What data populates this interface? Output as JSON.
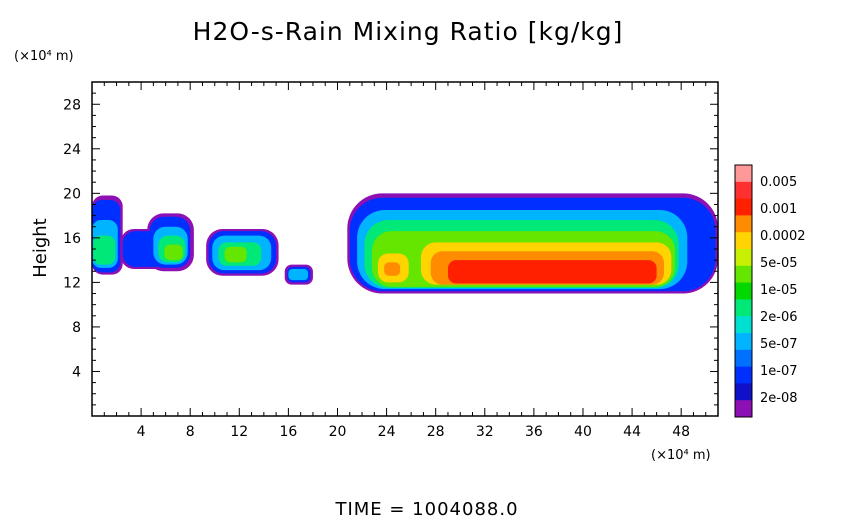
{
  "chart_data": {
    "type": "heatmap",
    "title": "H2O-s-Rain Mixing Ratio [kg/kg]",
    "ylabel": "Height",
    "xlabel": "",
    "x_unit": "(×10⁴ m)",
    "y_unit": "(×10⁴ m)",
    "footer": "TIME  =  1004088.0",
    "xlim": [
      0,
      51
    ],
    "ylim": [
      0,
      30
    ],
    "xticks": [
      "4",
      "8",
      "12",
      "16",
      "20",
      "24",
      "28",
      "32",
      "36",
      "40",
      "44",
      "48"
    ],
    "yticks": [
      "4",
      "8",
      "12",
      "16",
      "20",
      "24",
      "28"
    ],
    "colorbar": {
      "labels": [
        "0.005",
        "0.001",
        "0.0002",
        "5e-05",
        "1e-05",
        "2e-06",
        "5e-07",
        "1e-07",
        "2e-08"
      ],
      "colors": [
        "#ff9999",
        "#ff3030",
        "#ff2000",
        "#ff8c00",
        "#ffd400",
        "#c8f000",
        "#64e600",
        "#00d800",
        "#00e878",
        "#00e0d0",
        "#00b4ff",
        "#0070ff",
        "#0030ff",
        "#1010c8",
        "#8c10b4"
      ]
    },
    "layers": [
      {
        "color": "#8c10b4",
        "regions": [
          {
            "x": [
              0,
              2.5
            ],
            "y": [
              12.7,
              19.8
            ]
          },
          {
            "x": [
              2.3,
              6.5
            ],
            "y": [
              13.2,
              16.8
            ]
          },
          {
            "x": [
              4.5,
              8.3
            ],
            "y": [
              13.0,
              18.2
            ]
          },
          {
            "x": [
              9.3,
              15.2
            ],
            "y": [
              12.6,
              16.8
            ]
          },
          {
            "x": [
              15.7,
              18.0
            ],
            "y": [
              11.8,
              13.6
            ]
          },
          {
            "x": [
              20.8,
              51
            ],
            "y": [
              11.0,
              20.0
            ]
          }
        ]
      },
      {
        "color": "#0030ff",
        "regions": [
          {
            "x": [
              0,
              2.3
            ],
            "y": [
              12.9,
              19.4
            ]
          },
          {
            "x": [
              2.5,
              6.3
            ],
            "y": [
              13.4,
              16.6
            ]
          },
          {
            "x": [
              4.7,
              8.0
            ],
            "y": [
              13.3,
              17.9
            ]
          },
          {
            "x": [
              9.5,
              15.0
            ],
            "y": [
              12.8,
              16.6
            ]
          },
          {
            "x": [
              15.9,
              17.8
            ],
            "y": [
              12.0,
              13.4
            ]
          },
          {
            "x": [
              21.0,
              50.8
            ],
            "y": [
              11.2,
              19.6
            ]
          }
        ]
      },
      {
        "color": "#00b4ff",
        "regions": [
          {
            "x": [
              0,
              2.1
            ],
            "y": [
              13.3,
              17.6
            ]
          },
          {
            "x": [
              5.0,
              7.8
            ],
            "y": [
              13.6,
              17.0
            ]
          },
          {
            "x": [
              9.8,
              14.6
            ],
            "y": [
              13.1,
              16.2
            ]
          },
          {
            "x": [
              16.0,
              17.6
            ],
            "y": [
              12.2,
              13.2
            ]
          },
          {
            "x": [
              21.6,
              48.5
            ],
            "y": [
              11.4,
              18.5
            ]
          }
        ]
      },
      {
        "color": "#00e878",
        "regions": [
          {
            "x": [
              0.1,
              1.9
            ],
            "y": [
              13.6,
              16.2
            ]
          },
          {
            "x": [
              5.4,
              7.6
            ],
            "y": [
              13.8,
              16.2
            ]
          },
          {
            "x": [
              10.3,
              13.8
            ],
            "y": [
              13.5,
              15.6
            ]
          },
          {
            "x": [
              22.2,
              47.8
            ],
            "y": [
              11.5,
              17.6
            ]
          }
        ]
      },
      {
        "color": "#64e600",
        "regions": [
          {
            "x": [
              5.9,
              7.4
            ],
            "y": [
              14.0,
              15.4
            ]
          },
          {
            "x": [
              10.8,
              12.6
            ],
            "y": [
              13.8,
              15.2
            ]
          },
          {
            "x": [
              22.8,
              47.5
            ],
            "y": [
              11.6,
              16.6
            ]
          }
        ]
      },
      {
        "color": "#ffd400",
        "regions": [
          {
            "x": [
              23.3,
              25.8
            ],
            "y": [
              12.0,
              14.6
            ]
          },
          {
            "x": [
              26.8,
              47.2
            ],
            "y": [
              11.8,
              15.6
            ]
          }
        ]
      },
      {
        "color": "#ff8c00",
        "regions": [
          {
            "x": [
              23.8,
              25.1
            ],
            "y": [
              12.6,
              13.8
            ]
          },
          {
            "x": [
              27.6,
              46.6
            ],
            "y": [
              11.8,
              14.8
            ]
          }
        ]
      },
      {
        "color": "#ff2000",
        "regions": [
          {
            "x": [
              29.0,
              46.0
            ],
            "y": [
              11.9,
              14.0
            ]
          }
        ]
      }
    ]
  }
}
